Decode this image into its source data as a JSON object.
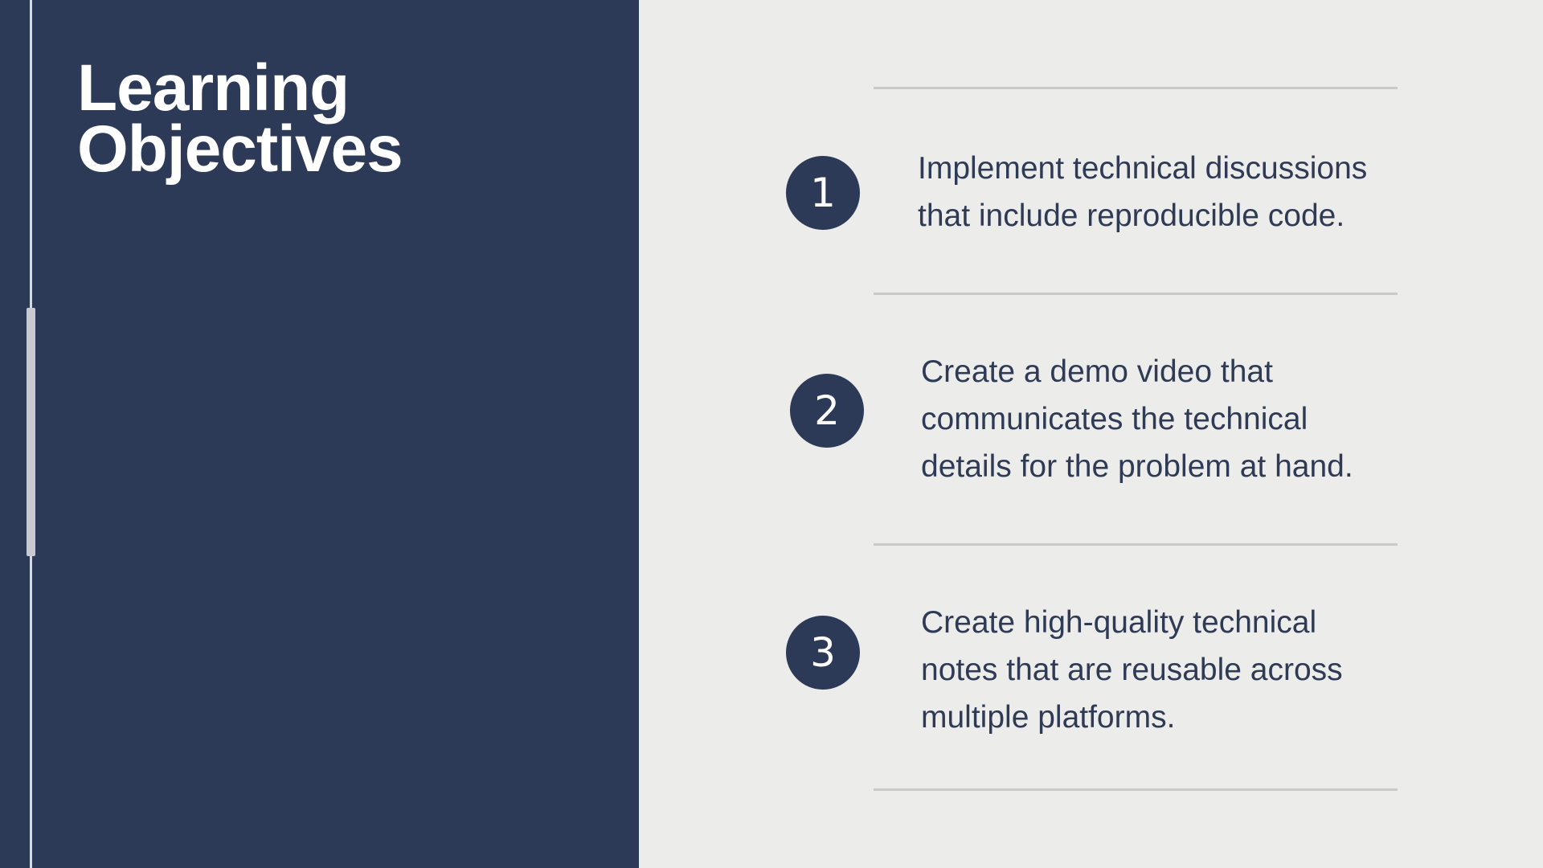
{
  "slide": {
    "title_line1": "Learning",
    "title_line2": "Objectives",
    "objectives": [
      {
        "number": "1",
        "text": "Implement technical discussions that include reproducible code."
      },
      {
        "number": "2",
        "text": "Create a demo video that communicates the technical details for the problem at hand."
      },
      {
        "number": "3",
        "text": "Create high-quality technical notes that are reusable across multiple platforms."
      }
    ]
  },
  "colors": {
    "panel_navy": "#2d3a57",
    "background": "#ececeb",
    "text": "#2f3b55",
    "divider": "#c9c9c9"
  }
}
